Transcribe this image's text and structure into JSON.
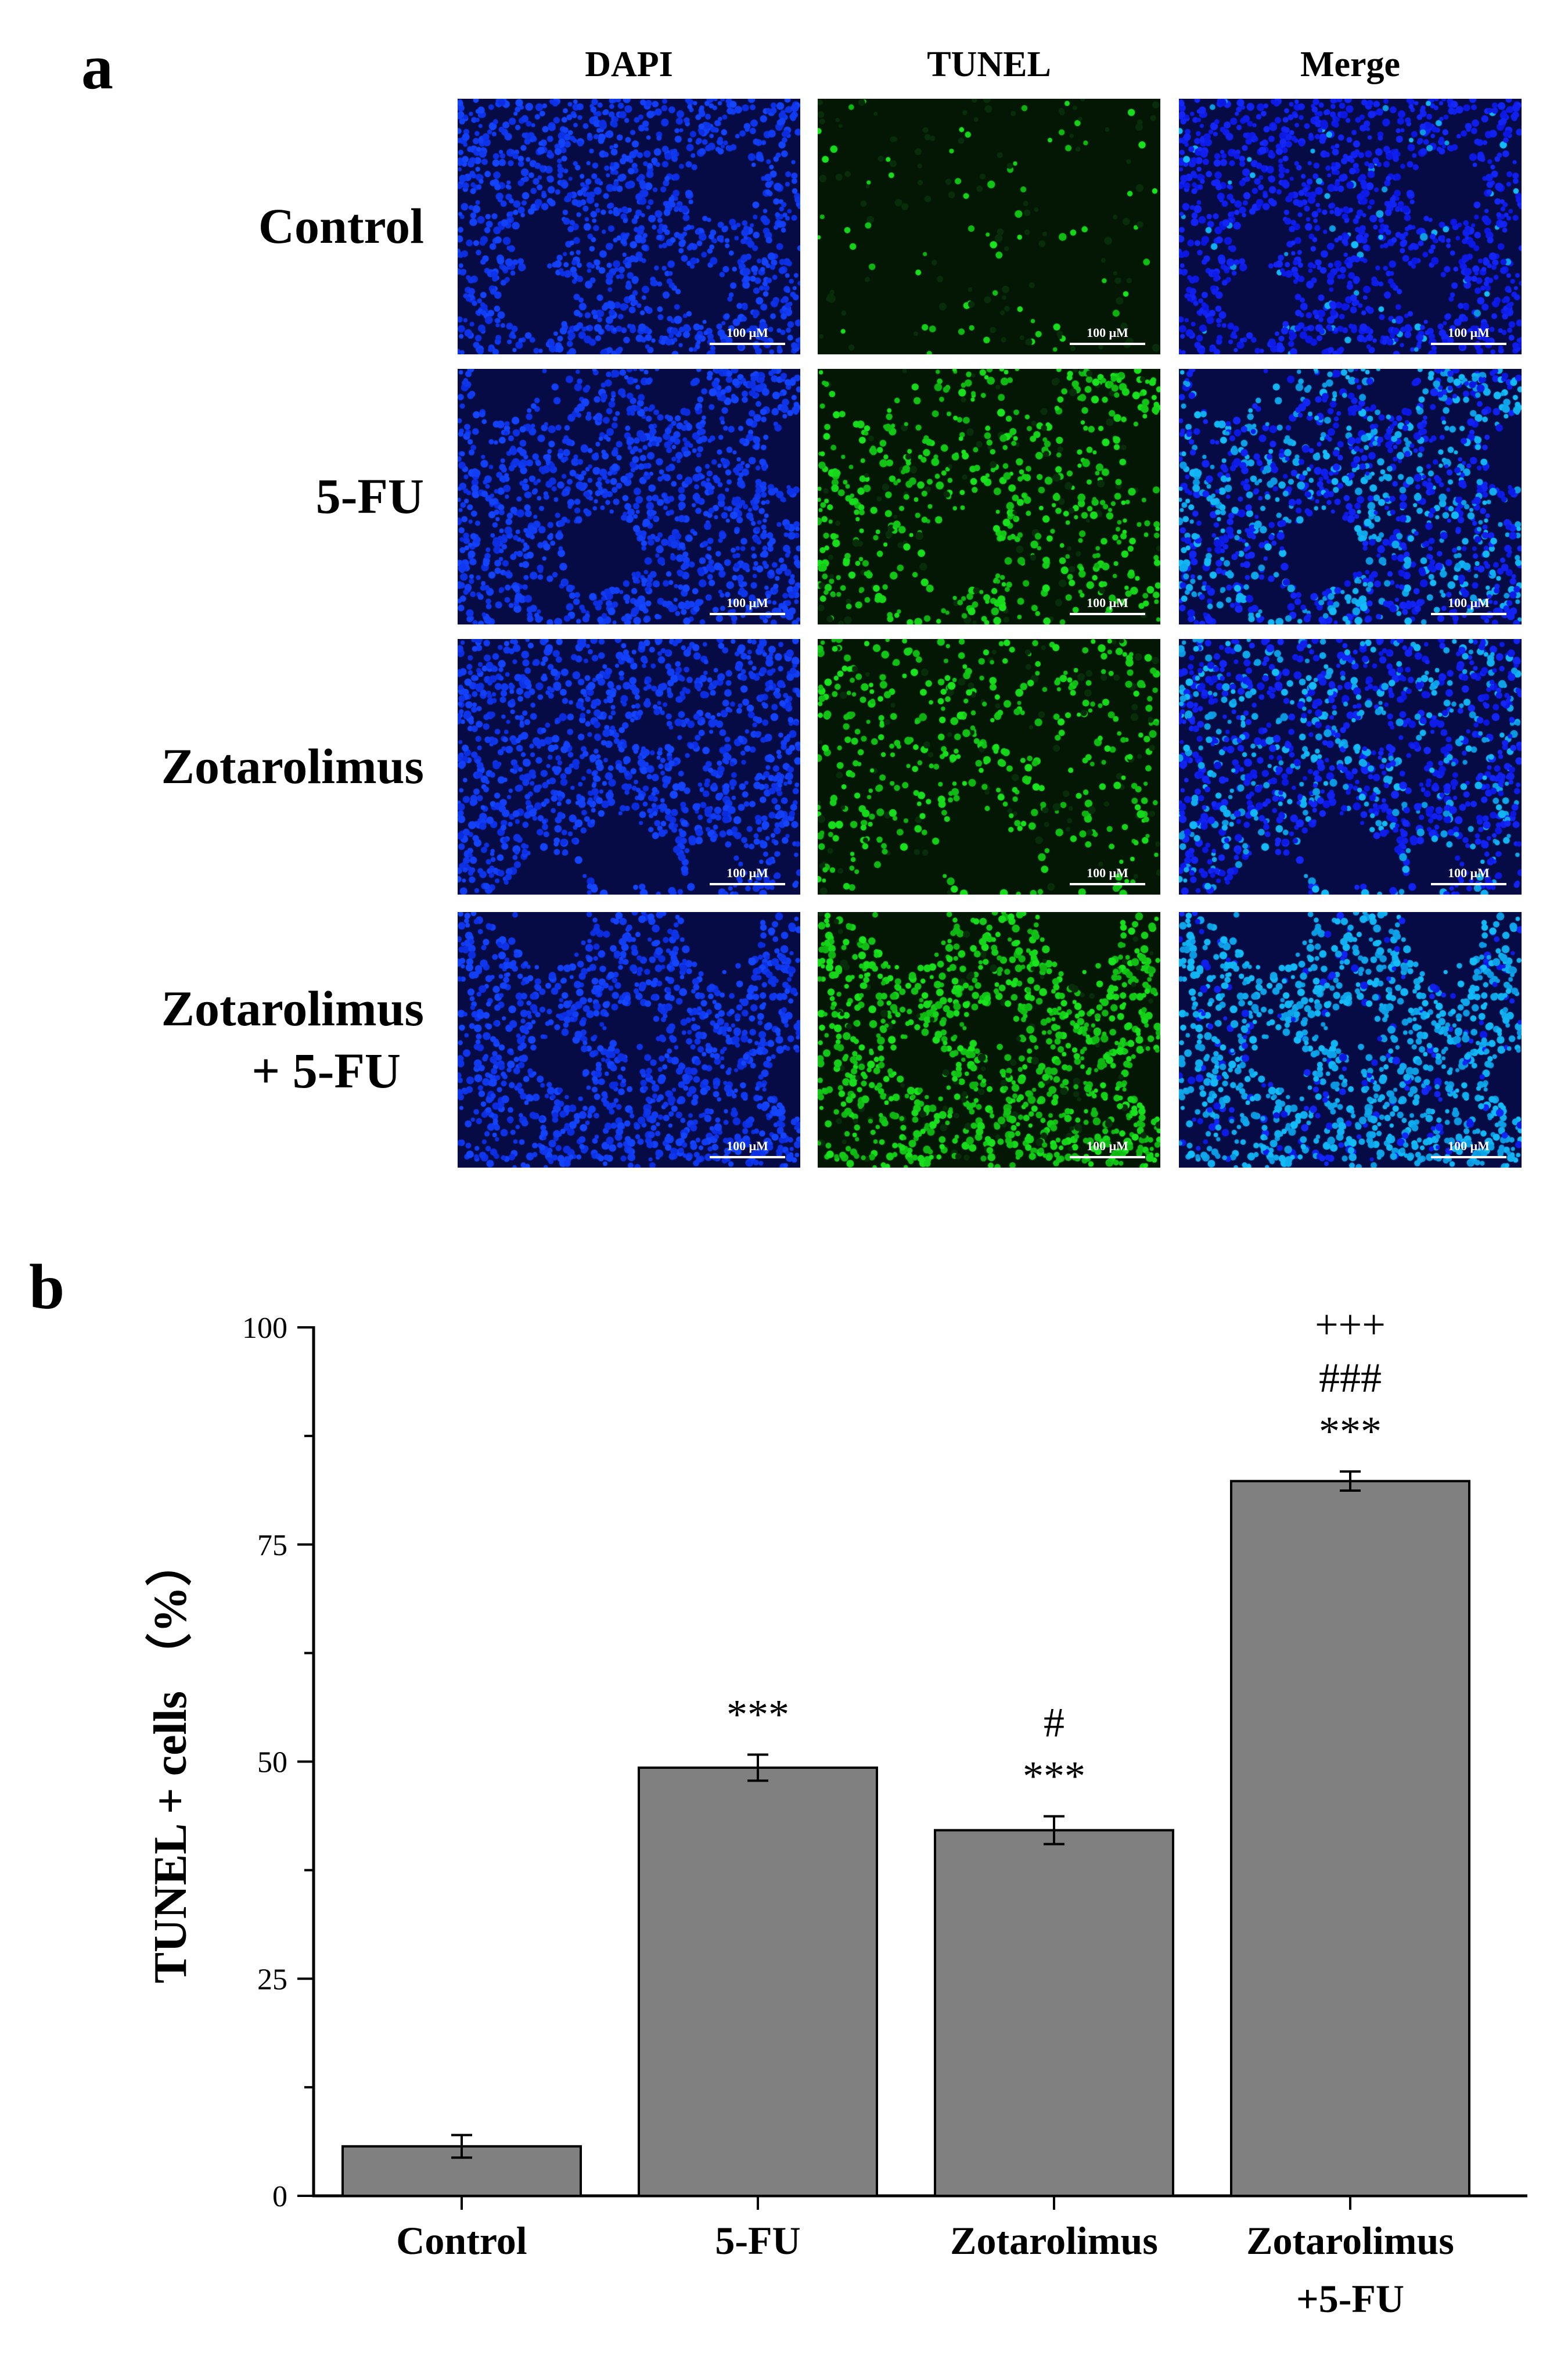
{
  "panel_a": {
    "letter": "a",
    "columns": [
      "DAPI",
      "TUNEL",
      "Merge"
    ],
    "rows": [
      {
        "label_lines": [
          "Control"
        ]
      },
      {
        "label_lines": [
          "5-FU"
        ]
      },
      {
        "label_lines": [
          "Zotarolimus"
        ]
      },
      {
        "label_lines": [
          "Zotarolimus",
          "+ 5-FU"
        ]
      }
    ],
    "scale_bar_label": "100 μM",
    "stain_colors": {
      "dapi": "#1f3ae6",
      "tunel": "#2fcf3a",
      "background": "#050a3a"
    },
    "tunel_intensity": [
      0.05,
      0.45,
      0.35,
      0.85
    ]
  },
  "panel_b": {
    "letter": "b"
  },
  "chart_data": {
    "type": "bar",
    "categories": [
      {
        "lines": [
          "Control"
        ]
      },
      {
        "lines": [
          "5-FU"
        ]
      },
      {
        "lines": [
          "Zotarolimus"
        ]
      },
      {
        "lines": [
          "Zotarolimus",
          "+5-FU"
        ]
      }
    ],
    "values": [
      5.7,
      49.3,
      42.1,
      82.3
    ],
    "errors": [
      1.3,
      1.5,
      1.6,
      1.1
    ],
    "significance": [
      [],
      [
        "***"
      ],
      [
        "#",
        "***"
      ],
      [
        "+++",
        "###",
        "***"
      ]
    ],
    "ylabel": "TUNEL + cells （%）",
    "ylim": [
      0,
      100
    ],
    "yticks": [
      "0",
      "25",
      "50",
      "75",
      "100"
    ],
    "bar_color": "#808080",
    "grid": false
  }
}
